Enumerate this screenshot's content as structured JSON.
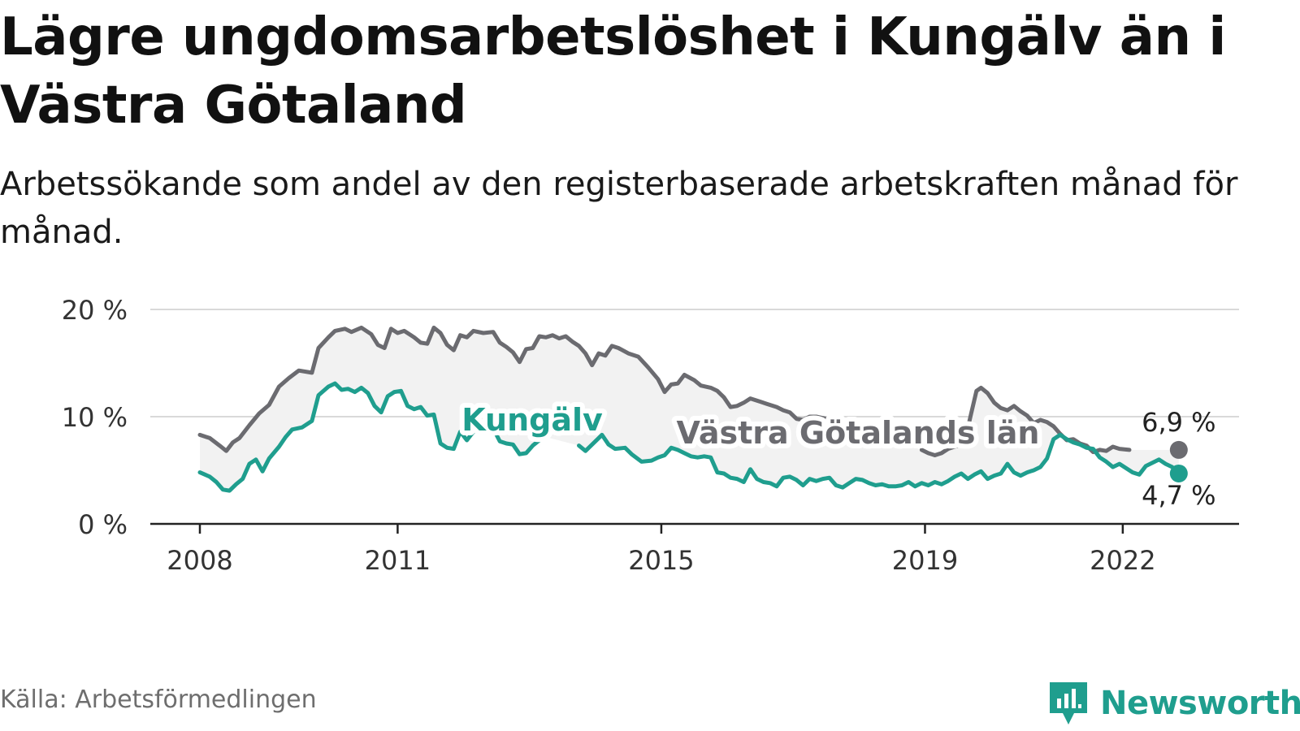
{
  "title": "Lägre ungdomsarbetslöshet i Kungälv än i Västra Götaland",
  "subtitle": "Arbetssökande som andel av den registerbaserade arbetskraften månad för månad.",
  "source": "Källa: Arbetsförmedlingen",
  "brand": "Newsworthy",
  "colors": {
    "kungalv": "#1f9e8e",
    "vgl": "#6b6b70",
    "band": "#f2f2f2",
    "grid": "#d9d9d9",
    "axis": "#222222"
  },
  "chart_data": {
    "type": "line",
    "title": "Lägre ungdomsarbetslöshet i Kungälv än i Västra Götaland",
    "xlabel": "",
    "ylabel": "",
    "ylim": [
      0,
      20
    ],
    "yticks": [
      0,
      10,
      20
    ],
    "ytick_labels": [
      "0 %",
      "10 %",
      "20 %"
    ],
    "xlim": [
      2008.0,
      2023.0
    ],
    "xticks": [
      2008,
      2011,
      2015,
      2019,
      2022
    ],
    "xtick_labels": [
      "2008",
      "2011",
      "2015",
      "2019",
      "2022"
    ],
    "grid": true,
    "series": [
      {
        "name": "Västra Götalands län",
        "label": "Västra Götalands län",
        "end_label": "6,9 %",
        "points": [
          [
            2008.0,
            8.3
          ],
          [
            2008.15,
            8.0
          ],
          [
            2008.3,
            7.3
          ],
          [
            2008.4,
            6.8
          ],
          [
            2008.5,
            7.6
          ],
          [
            2008.6,
            8.0
          ],
          [
            2008.75,
            9.2
          ],
          [
            2008.9,
            10.3
          ],
          [
            2009.05,
            11.1
          ],
          [
            2009.2,
            12.8
          ],
          [
            2009.35,
            13.6
          ],
          [
            2009.5,
            14.3
          ],
          [
            2009.7,
            14.1
          ],
          [
            2009.8,
            16.4
          ],
          [
            2009.95,
            17.4
          ],
          [
            2010.05,
            18.0
          ],
          [
            2010.2,
            18.2
          ],
          [
            2010.3,
            17.9
          ],
          [
            2010.45,
            18.3
          ],
          [
            2010.6,
            17.7
          ],
          [
            2010.7,
            16.7
          ],
          [
            2010.8,
            16.4
          ],
          [
            2010.9,
            18.2
          ],
          [
            2011.0,
            17.8
          ],
          [
            2011.1,
            18.0
          ],
          [
            2011.25,
            17.4
          ],
          [
            2011.35,
            16.9
          ],
          [
            2011.45,
            16.8
          ],
          [
            2011.55,
            18.3
          ],
          [
            2011.65,
            17.8
          ],
          [
            2011.75,
            16.7
          ],
          [
            2011.85,
            16.2
          ],
          [
            2011.95,
            17.6
          ],
          [
            2012.05,
            17.4
          ],
          [
            2012.15,
            18.0
          ],
          [
            2012.3,
            17.8
          ],
          [
            2012.45,
            17.9
          ],
          [
            2012.55,
            16.9
          ],
          [
            2012.65,
            16.5
          ],
          [
            2012.75,
            16.0
          ],
          [
            2012.85,
            15.1
          ],
          [
            2012.95,
            16.3
          ],
          [
            2013.05,
            16.4
          ],
          [
            2013.15,
            17.5
          ],
          [
            2013.25,
            17.4
          ],
          [
            2013.35,
            17.6
          ],
          [
            2013.45,
            17.3
          ],
          [
            2013.55,
            17.5
          ],
          [
            2013.65,
            17.0
          ],
          [
            2013.75,
            16.6
          ],
          [
            2013.85,
            15.9
          ],
          [
            2013.95,
            14.8
          ],
          [
            2014.05,
            15.9
          ],
          [
            2014.15,
            15.7
          ],
          [
            2014.25,
            16.6
          ],
          [
            2014.35,
            16.4
          ],
          [
            2014.5,
            15.9
          ],
          [
            2014.65,
            15.6
          ],
          [
            2014.8,
            14.6
          ],
          [
            2014.95,
            13.5
          ],
          [
            2015.05,
            12.3
          ],
          [
            2015.15,
            13.0
          ],
          [
            2015.25,
            13.1
          ],
          [
            2015.35,
            13.9
          ],
          [
            2015.5,
            13.4
          ],
          [
            2015.6,
            12.9
          ],
          [
            2015.75,
            12.7
          ],
          [
            2015.85,
            12.4
          ],
          [
            2015.95,
            11.8
          ],
          [
            2016.05,
            10.9
          ],
          [
            2016.15,
            11.0
          ],
          [
            2016.25,
            11.3
          ],
          [
            2016.35,
            11.7
          ],
          [
            2016.5,
            11.4
          ],
          [
            2016.6,
            11.2
          ],
          [
            2016.75,
            10.9
          ],
          [
            2016.85,
            10.6
          ],
          [
            2016.95,
            10.4
          ],
          [
            2017.05,
            9.8
          ],
          [
            2017.15,
            9.7
          ],
          [
            2017.25,
            10.0
          ],
          [
            2017.35,
            10.0
          ],
          [
            2017.5,
            9.8
          ]
        ]
      },
      {
        "name": "Västra Götalands län (2018–2022)",
        "label": "",
        "end_label": "",
        "points": [
          [
            2018.95,
            6.9
          ],
          [
            2019.05,
            6.6
          ],
          [
            2019.15,
            6.4
          ],
          [
            2019.25,
            6.6
          ],
          [
            2019.35,
            7.0
          ],
          [
            2019.5,
            7.3
          ],
          [
            2019.6,
            7.6
          ],
          [
            2019.7,
            10.3
          ],
          [
            2019.78,
            12.4
          ],
          [
            2019.85,
            12.7
          ],
          [
            2019.95,
            12.2
          ],
          [
            2020.05,
            11.3
          ],
          [
            2020.15,
            10.8
          ],
          [
            2020.25,
            10.6
          ],
          [
            2020.35,
            11.0
          ],
          [
            2020.45,
            10.5
          ],
          [
            2020.55,
            10.1
          ],
          [
            2020.65,
            9.4
          ],
          [
            2020.75,
            9.7
          ],
          [
            2020.85,
            9.5
          ],
          [
            2020.95,
            9.1
          ],
          [
            2021.05,
            8.4
          ],
          [
            2021.15,
            7.8
          ],
          [
            2021.25,
            7.9
          ],
          [
            2021.35,
            7.5
          ],
          [
            2021.45,
            7.3
          ],
          [
            2021.55,
            6.7
          ],
          [
            2021.65,
            6.9
          ],
          [
            2021.75,
            6.8
          ],
          [
            2021.85,
            7.2
          ],
          [
            2021.95,
            7.0
          ],
          [
            2022.1,
            6.9
          ]
        ]
      },
      {
        "name": "Kungälv",
        "label": "Kungälv",
        "end_label": "4,7 %",
        "points": [
          [
            2008.0,
            4.8
          ],
          [
            2008.15,
            4.4
          ],
          [
            2008.25,
            3.9
          ],
          [
            2008.35,
            3.2
          ],
          [
            2008.45,
            3.1
          ],
          [
            2008.55,
            3.7
          ],
          [
            2008.65,
            4.2
          ],
          [
            2008.75,
            5.6
          ],
          [
            2008.85,
            6.0
          ],
          [
            2008.95,
            4.9
          ],
          [
            2009.05,
            6.1
          ],
          [
            2009.2,
            7.2
          ],
          [
            2009.3,
            8.1
          ],
          [
            2009.4,
            8.8
          ],
          [
            2009.55,
            9.0
          ],
          [
            2009.7,
            9.6
          ],
          [
            2009.8,
            12.0
          ],
          [
            2009.95,
            12.8
          ],
          [
            2010.05,
            13.1
          ],
          [
            2010.15,
            12.5
          ],
          [
            2010.25,
            12.6
          ],
          [
            2010.35,
            12.3
          ],
          [
            2010.45,
            12.7
          ],
          [
            2010.55,
            12.2
          ],
          [
            2010.65,
            11.0
          ],
          [
            2010.75,
            10.4
          ],
          [
            2010.85,
            11.9
          ],
          [
            2010.95,
            12.3
          ],
          [
            2011.05,
            12.4
          ],
          [
            2011.15,
            11.0
          ],
          [
            2011.25,
            10.7
          ],
          [
            2011.35,
            10.9
          ],
          [
            2011.45,
            10.1
          ],
          [
            2011.55,
            10.2
          ],
          [
            2011.65,
            7.5
          ],
          [
            2011.75,
            7.1
          ],
          [
            2011.85,
            7.0
          ],
          [
            2011.95,
            8.6
          ],
          [
            2012.05,
            7.8
          ],
          [
            2012.15,
            8.6
          ],
          [
            2012.25,
            9.0
          ],
          [
            2012.35,
            8.6
          ],
          [
            2012.45,
            8.9
          ],
          [
            2012.55,
            7.7
          ],
          [
            2012.65,
            7.5
          ],
          [
            2012.75,
            7.4
          ],
          [
            2012.85,
            6.5
          ],
          [
            2012.95,
            6.6
          ],
          [
            2013.05,
            7.3
          ],
          [
            2013.15,
            7.8
          ],
          [
            2013.25,
            8.1
          ]
        ]
      },
      {
        "name": "Kungälv (2014–2022)",
        "label": "",
        "end_label": "",
        "points": [
          [
            2013.75,
            7.3
          ],
          [
            2013.85,
            6.8
          ],
          [
            2013.95,
            7.4
          ],
          [
            2014.1,
            8.3
          ],
          [
            2014.2,
            7.4
          ],
          [
            2014.3,
            7.0
          ],
          [
            2014.45,
            7.1
          ],
          [
            2014.55,
            6.5
          ],
          [
            2014.7,
            5.8
          ],
          [
            2014.85,
            5.9
          ],
          [
            2014.95,
            6.2
          ],
          [
            2015.05,
            6.4
          ],
          [
            2015.15,
            7.1
          ],
          [
            2015.25,
            6.9
          ],
          [
            2015.35,
            6.6
          ],
          [
            2015.45,
            6.3
          ],
          [
            2015.55,
            6.2
          ],
          [
            2015.65,
            6.3
          ],
          [
            2015.75,
            6.2
          ],
          [
            2015.85,
            4.8
          ],
          [
            2015.95,
            4.7
          ],
          [
            2016.05,
            4.3
          ],
          [
            2016.15,
            4.2
          ],
          [
            2016.25,
            3.9
          ],
          [
            2016.35,
            5.1
          ],
          [
            2016.45,
            4.2
          ],
          [
            2016.55,
            3.9
          ],
          [
            2016.65,
            3.8
          ],
          [
            2016.75,
            3.5
          ],
          [
            2016.85,
            4.3
          ],
          [
            2016.95,
            4.4
          ],
          [
            2017.05,
            4.1
          ],
          [
            2017.15,
            3.6
          ],
          [
            2017.25,
            4.2
          ],
          [
            2017.35,
            4.0
          ],
          [
            2017.45,
            4.2
          ],
          [
            2017.55,
            4.3
          ],
          [
            2017.65,
            3.6
          ],
          [
            2017.75,
            3.4
          ],
          [
            2017.85,
            3.8
          ],
          [
            2017.95,
            4.2
          ],
          [
            2018.05,
            4.1
          ],
          [
            2018.15,
            3.8
          ],
          [
            2018.25,
            3.6
          ],
          [
            2018.35,
            3.7
          ],
          [
            2018.45,
            3.5
          ],
          [
            2018.55,
            3.5
          ],
          [
            2018.65,
            3.6
          ],
          [
            2018.75,
            3.9
          ],
          [
            2018.85,
            3.5
          ],
          [
            2018.95,
            3.8
          ],
          [
            2019.05,
            3.6
          ],
          [
            2019.15,
            3.9
          ],
          [
            2019.25,
            3.7
          ],
          [
            2019.35,
            4.0
          ],
          [
            2019.45,
            4.4
          ],
          [
            2019.55,
            4.7
          ],
          [
            2019.65,
            4.2
          ],
          [
            2019.75,
            4.6
          ],
          [
            2019.85,
            4.9
          ],
          [
            2019.95,
            4.2
          ],
          [
            2020.05,
            4.5
          ],
          [
            2020.15,
            4.7
          ],
          [
            2020.25,
            5.6
          ],
          [
            2020.35,
            4.8
          ],
          [
            2020.45,
            4.5
          ],
          [
            2020.55,
            4.8
          ],
          [
            2020.65,
            5.0
          ],
          [
            2020.75,
            5.3
          ],
          [
            2020.85,
            6.1
          ],
          [
            2020.95,
            7.9
          ],
          [
            2021.05,
            8.3
          ],
          [
            2021.15,
            7.9
          ],
          [
            2021.25,
            7.6
          ],
          [
            2021.35,
            7.4
          ],
          [
            2021.45,
            7.1
          ],
          [
            2021.55,
            7.0
          ],
          [
            2021.65,
            6.2
          ],
          [
            2021.75,
            5.8
          ],
          [
            2021.85,
            5.3
          ],
          [
            2021.95,
            5.6
          ],
          [
            2022.05,
            5.2
          ],
          [
            2022.15,
            4.8
          ],
          [
            2022.25,
            4.6
          ],
          [
            2022.35,
            5.4
          ],
          [
            2022.45,
            5.7
          ],
          [
            2022.55,
            6.0
          ],
          [
            2022.65,
            5.6
          ],
          [
            2022.75,
            5.3
          ],
          [
            2022.85,
            4.7
          ]
        ]
      }
    ]
  }
}
